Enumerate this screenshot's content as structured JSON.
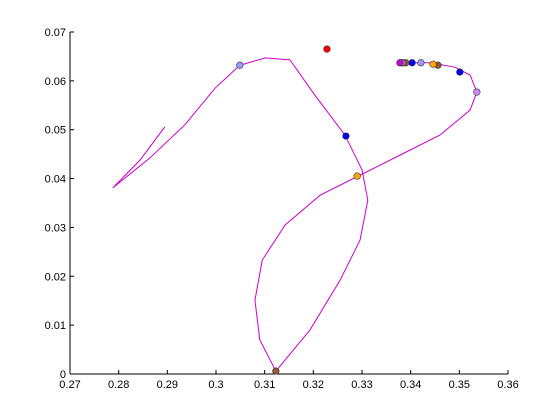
{
  "chart_data": {
    "type": "line",
    "xlim": [
      0.27,
      0.36
    ],
    "ylim": [
      0,
      0.07
    ],
    "xticks": [
      0.27,
      0.28,
      0.29,
      0.3,
      0.31,
      0.32,
      0.33,
      0.34,
      0.35,
      0.36
    ],
    "yticks": [
      0,
      0.01,
      0.02,
      0.03,
      0.04,
      0.05,
      0.06,
      0.07
    ],
    "grid": false,
    "series": [
      {
        "color": "#cc00cc",
        "x": [
          0.2895,
          0.2844,
          0.2788,
          0.2864,
          0.2936,
          0.2998,
          0.3049,
          0.3101,
          0.3152,
          0.3203,
          0.3265,
          0.33,
          0.3312,
          0.3296,
          0.3255,
          0.3193,
          0.3123,
          0.309,
          0.308,
          0.3095,
          0.3142,
          0.3214,
          0.3292,
          0.3378,
          0.346,
          0.3522,
          0.3536,
          0.3522,
          0.3491,
          0.344,
          0.3378
        ],
        "values": [
          0.0506,
          0.0438,
          0.0381,
          0.0442,
          0.051,
          0.0585,
          0.0632,
          0.0647,
          0.0643,
          0.0571,
          0.0489,
          0.0418,
          0.0356,
          0.0274,
          0.0192,
          0.009,
          0.0006,
          0.007,
          0.0151,
          0.0233,
          0.0305,
          0.0366,
          0.0405,
          0.0448,
          0.0489,
          0.054,
          0.0577,
          0.0612,
          0.0628,
          0.0637,
          0.0637
        ]
      }
    ],
    "points": {
      "x": [
        0.3228,
        0.3049,
        0.3267,
        0.329,
        0.3123,
        0.3536,
        0.3501,
        0.3456,
        0.3446,
        0.3421,
        0.3403,
        0.339,
        0.3384,
        0.3382,
        0.3378
      ],
      "values": [
        0.0665,
        0.0632,
        0.0487,
        0.0405,
        0.0006,
        0.0577,
        0.0618,
        0.0632,
        0.0634,
        0.0637,
        0.0637,
        0.0637,
        0.0637,
        0.0637,
        0.0637
      ],
      "colors": [
        "#ff0000",
        "#9999ff",
        "#0000ff",
        "#ffaa00",
        "#995533",
        "#cc88ff",
        "#0000ff",
        "#995533",
        "#ffaa00",
        "#9999ff",
        "#0000ff",
        "#995533",
        "#ffaa00",
        "#9999ff",
        "#cc00cc"
      ]
    }
  }
}
